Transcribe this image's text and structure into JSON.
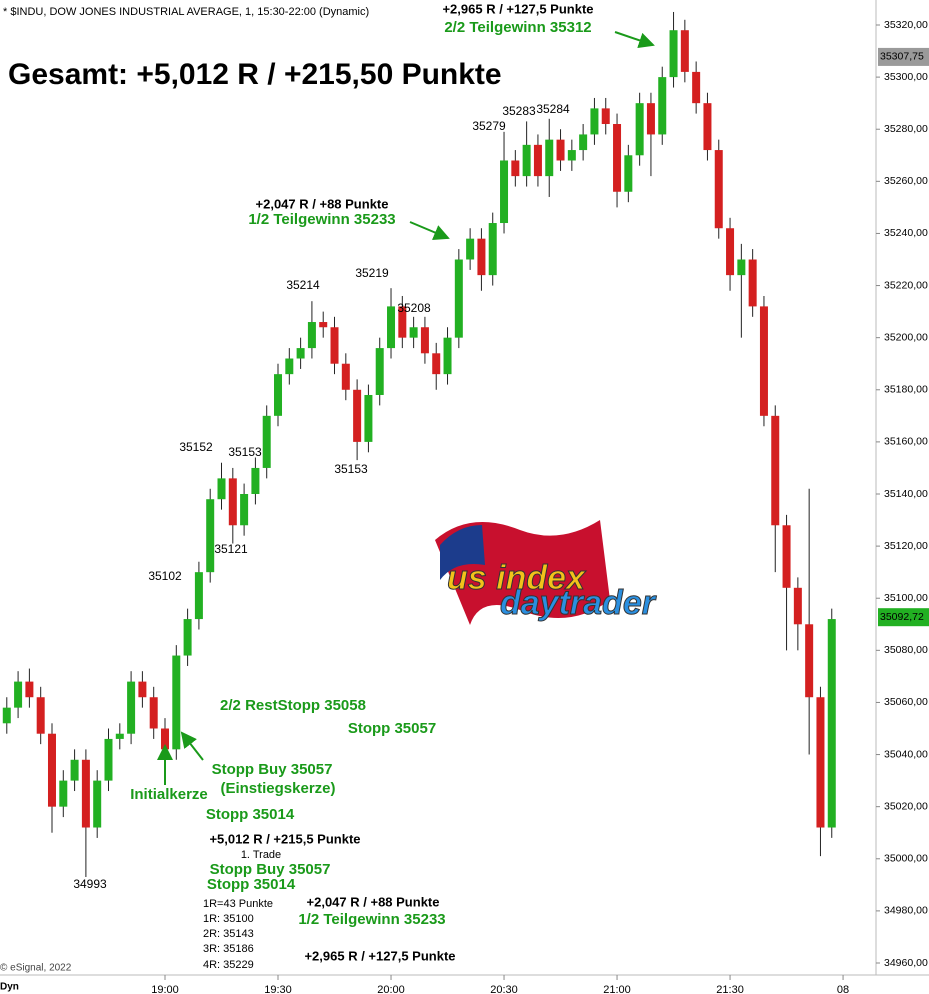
{
  "chart_data": {
    "type": "candlestick",
    "title": "* $INDU, DOW JONES INDUSTRIAL AVERAGE, 1, 15:30-22:00 (Dynamic)",
    "x": [
      "18:18",
      "18:21",
      "18:24",
      "18:27",
      "18:30",
      "18:33",
      "18:36",
      "18:39",
      "18:42",
      "18:45",
      "18:48",
      "18:51",
      "18:54",
      "18:57",
      "19:00",
      "19:03",
      "19:06",
      "19:09",
      "19:12",
      "19:15",
      "19:18",
      "19:21",
      "19:24",
      "19:27",
      "19:30",
      "19:33",
      "19:36",
      "19:39",
      "19:42",
      "19:45",
      "19:48",
      "19:51",
      "19:54",
      "19:57",
      "20:00",
      "20:03",
      "20:06",
      "20:09",
      "20:12",
      "20:15",
      "20:18",
      "20:21",
      "20:24",
      "20:27",
      "20:30",
      "20:33",
      "20:36",
      "20:39",
      "20:42",
      "20:45",
      "20:48",
      "20:51",
      "20:54",
      "20:57",
      "21:00",
      "21:03",
      "21:06",
      "21:09",
      "21:12",
      "21:15",
      "21:18",
      "21:21",
      "21:24",
      "21:27",
      "21:30",
      "21:33",
      "21:36",
      "21:39",
      "21:42",
      "21:45",
      "21:48",
      "21:51",
      "21:54",
      "21:57"
    ],
    "open": [
      35052,
      35058,
      35068,
      35062,
      35048,
      35020,
      35030,
      35038,
      35012,
      35030,
      35046,
      35048,
      35068,
      35062,
      35050,
      35042,
      35078,
      35092,
      35110,
      35138,
      35146,
      35128,
      35140,
      35150,
      35170,
      35186,
      35192,
      35196,
      35206,
      35204,
      35190,
      35180,
      35160,
      35178,
      35196,
      35212,
      35200,
      35204,
      35194,
      35186,
      35200,
      35230,
      35238,
      35224,
      35244,
      35268,
      35262,
      35274,
      35262,
      35276,
      35268,
      35272,
      35278,
      35288,
      35282,
      35256,
      35270,
      35290,
      35278,
      35300,
      35318,
      35302,
      35290,
      35272,
      35242,
      35224,
      35230,
      35212,
      35170,
      35128,
      35104,
      35090,
      35062,
      35012
    ],
    "high": [
      35062,
      35072,
      35073,
      35066,
      35052,
      35034,
      35042,
      35042,
      35034,
      35050,
      35052,
      35072,
      35072,
      35066,
      35054,
      35082,
      35096,
      35114,
      35142,
      35152,
      35150,
      35144,
      35154,
      35174,
      35190,
      35196,
      35200,
      35214,
      35210,
      35208,
      35194,
      35184,
      35182,
      35200,
      35219,
      35216,
      35208,
      35208,
      35198,
      35204,
      35234,
      35242,
      35242,
      35248,
      35279,
      35272,
      35283,
      35278,
      35284,
      35280,
      35276,
      35282,
      35292,
      35292,
      35286,
      35274,
      35294,
      35294,
      35304,
      35325,
      35322,
      35306,
      35294,
      35276,
      35246,
      35236,
      35234,
      35216,
      35174,
      35132,
      35108,
      35142,
      35066,
      35096
    ],
    "low": [
      35048,
      35054,
      35058,
      35044,
      35010,
      35016,
      35026,
      34993,
      35008,
      35026,
      35042,
      35044,
      35058,
      35046,
      35038,
      35038,
      35074,
      35088,
      35106,
      35134,
      35121,
      35124,
      35136,
      35146,
      35166,
      35182,
      35188,
      35192,
      35200,
      35186,
      35176,
      35153,
      35156,
      35174,
      35192,
      35196,
      35196,
      35190,
      35180,
      35182,
      35196,
      35226,
      35218,
      35220,
      35240,
      35258,
      35258,
      35258,
      35254,
      35264,
      35264,
      35268,
      35274,
      35278,
      35250,
      35252,
      35266,
      35262,
      35274,
      35296,
      35298,
      35286,
      35268,
      35238,
      35218,
      35200,
      35208,
      35166,
      35110,
      35080,
      35080,
      35040,
      35001,
      35008
    ],
    "close": [
      35058,
      35068,
      35062,
      35048,
      35020,
      35030,
      35038,
      35012,
      35030,
      35046,
      35048,
      35068,
      35062,
      35050,
      35042,
      35078,
      35092,
      35110,
      35138,
      35146,
      35128,
      35140,
      35150,
      35170,
      35186,
      35192,
      35196,
      35206,
      35204,
      35190,
      35180,
      35160,
      35178,
      35196,
      35212,
      35200,
      35204,
      35194,
      35186,
      35200,
      35230,
      35238,
      35224,
      35244,
      35268,
      35262,
      35274,
      35262,
      35276,
      35268,
      35272,
      35278,
      35288,
      35282,
      35256,
      35270,
      35290,
      35278,
      35300,
      35318,
      35302,
      35290,
      35272,
      35242,
      35224,
      35230,
      35212,
      35170,
      35128,
      35104,
      35090,
      35062,
      35012,
      35092
    ],
    "up_color": "#22b022",
    "down_color": "#d42020",
    "ylim": [
      34955,
      35330
    ],
    "yticks": [
      {
        "value": 34960,
        "label": "34960,00"
      },
      {
        "value": 34980,
        "label": "34980,00"
      },
      {
        "value": 35000,
        "label": "35000,00"
      },
      {
        "value": 35020,
        "label": "35020,00"
      },
      {
        "value": 35040,
        "label": "35040,00"
      },
      {
        "value": 35060,
        "label": "35060,00"
      },
      {
        "value": 35080,
        "label": "35080,00"
      },
      {
        "value": 35100,
        "label": "35100,00"
      },
      {
        "value": 35120,
        "label": "35120,00"
      },
      {
        "value": 35140,
        "label": "35140,00"
      },
      {
        "value": 35160,
        "label": "35160,00"
      },
      {
        "value": 35180,
        "label": "35180,00"
      },
      {
        "value": 35200,
        "label": "35200,00"
      },
      {
        "value": 35220,
        "label": "35220,00"
      },
      {
        "value": 35240,
        "label": "35240,00"
      },
      {
        "value": 35260,
        "label": "35260,00"
      },
      {
        "value": 35280,
        "label": "35280,00"
      },
      {
        "value": 35300,
        "label": "35300,00"
      },
      {
        "value": 35320,
        "label": "35320,00"
      }
    ],
    "xticks": [
      "19:00",
      "19:30",
      "20:00",
      "20:30",
      "21:00",
      "21:30",
      {
        "value": "22:00",
        "label": "08"
      }
    ],
    "price_markers": [
      {
        "value": 35307.75,
        "label": "35307,75",
        "color": "#9a9a9a"
      },
      {
        "value": 35092.72,
        "label": "35092,72",
        "color": "#22b022"
      }
    ],
    "annotations": [
      "Gesamt: +5,012 R / +215,50  Punkte",
      "+2,965 R / +127,5 Punkte",
      "2/2 Teilgewinn 35312",
      "+2,047 R / +88 Punkte",
      "1/2 Teilgewinn 35233",
      "35279",
      "35283",
      "35284",
      "35214",
      "35219",
      "35208",
      "35152",
      "35153",
      "35153",
      "35121",
      "35102",
      "34993",
      "2/2 RestStopp 35058",
      "Stopp 35057",
      "Stopp Buy 35057",
      "(Einstiegskerze)",
      "Initialkerze",
      "Stopp 35014",
      "+5,012 R / +215,5 Punkte",
      "1. Trade",
      "Stopp Buy 35057",
      "Stopp 35014",
      "1R=43 Punkte",
      "1R: 35100",
      "2R: 35143",
      "3R: 35186",
      "4R: 35229",
      "+2,047 R / +88 Punkte",
      "1/2 Teilgewinn 35233",
      "+2,965 R / +127,5 Punkte",
      "© eSignal, 2022",
      "Dyn"
    ],
    "logo": [
      "us index",
      "daytrader"
    ]
  }
}
